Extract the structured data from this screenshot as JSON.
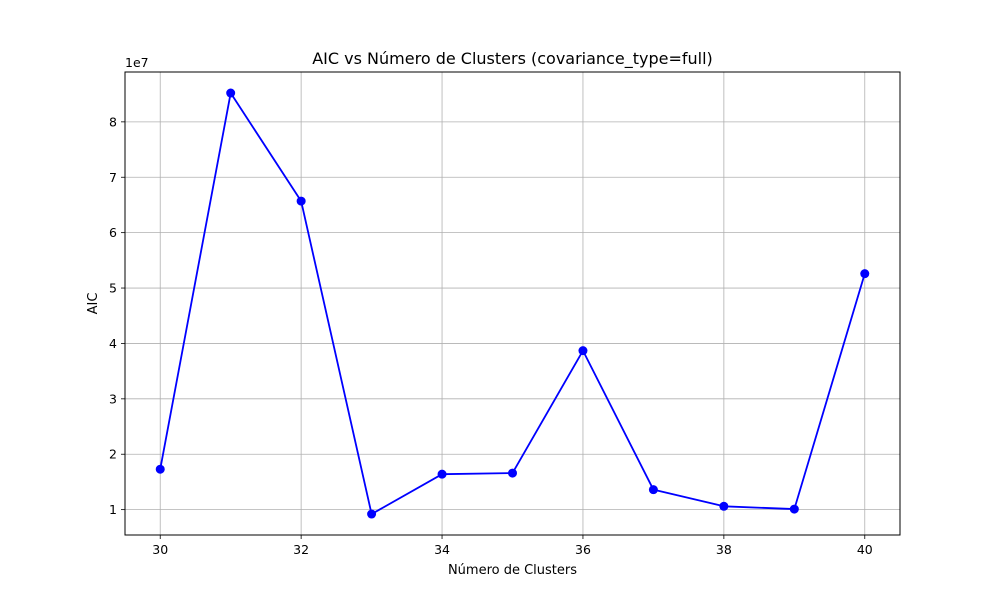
{
  "chart_data": {
    "type": "line",
    "title": "AIC vs Número de Clusters (covariance_type=full)",
    "xlabel": "Número de Clusters",
    "ylabel": "AIC",
    "y_offset_label": "1e7",
    "x": [
      30,
      31,
      32,
      33,
      34,
      35,
      36,
      37,
      38,
      39,
      40
    ],
    "series": [
      {
        "values": [
          17300000,
          85200000,
          65700000,
          9200000,
          16400000,
          16600000,
          38700000,
          13600000,
          10600000,
          10100000,
          52600000
        ],
        "color": "#0000ff",
        "marker": "circle"
      }
    ],
    "x_ticks": [
      30,
      32,
      34,
      36,
      38,
      40
    ],
    "x_tick_labels": [
      "30",
      "32",
      "34",
      "36",
      "38",
      "40"
    ],
    "y_ticks": [
      10000000,
      20000000,
      30000000,
      40000000,
      50000000,
      60000000,
      70000000,
      80000000
    ],
    "y_tick_labels": [
      "1",
      "2",
      "3",
      "4",
      "5",
      "6",
      "7",
      "8"
    ],
    "xlim": [
      29.5,
      40.5
    ],
    "ylim": [
      5420000,
      89000000
    ],
    "grid": true
  }
}
